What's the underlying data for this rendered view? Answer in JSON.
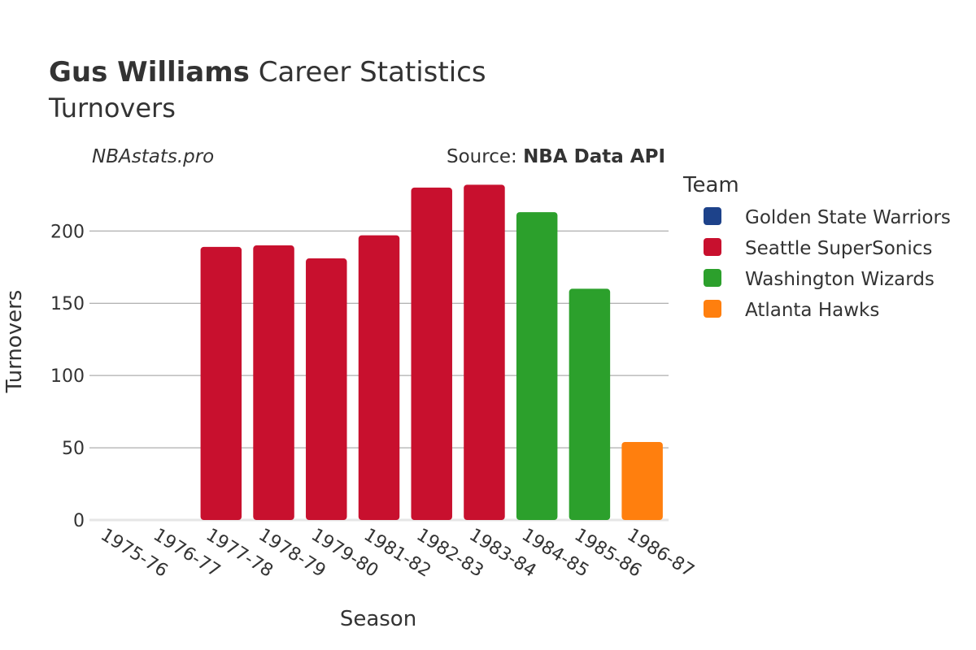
{
  "title": {
    "player": "Gus Williams",
    "rest": " Career Statistics",
    "subtitle": "Turnovers"
  },
  "watermark": "NBAstats.pro",
  "source": {
    "prefix": "Source: ",
    "name": "NBA Data API"
  },
  "legend": {
    "title": "Team",
    "items": [
      {
        "label": "Golden State Warriors",
        "color": "#1d428a"
      },
      {
        "label": "Seattle SuperSonics",
        "color": "#c8102e"
      },
      {
        "label": "Washington Wizards",
        "color": "#2ca02c"
      },
      {
        "label": "Atlanta Hawks",
        "color": "#ff7f0e"
      }
    ]
  },
  "chart_data": {
    "type": "bar",
    "title": "Gus Williams Career Statistics — Turnovers",
    "xlabel": "Season",
    "ylabel": "Turnovers",
    "ylim": [
      0,
      235
    ],
    "yticks": [
      0,
      50,
      100,
      150,
      200
    ],
    "grid": true,
    "legend_position": "right",
    "categories": [
      "1975-76",
      "1976-77",
      "1977-78",
      "1978-79",
      "1979-80",
      "1981-82",
      "1982-83",
      "1983-84",
      "1984-85",
      "1985-86",
      "1986-87"
    ],
    "values": [
      0,
      0,
      189,
      190,
      181,
      197,
      230,
      232,
      213,
      160,
      54
    ],
    "teams": [
      "Golden State Warriors",
      "Golden State Warriors",
      "Seattle SuperSonics",
      "Seattle SuperSonics",
      "Seattle SuperSonics",
      "Seattle SuperSonics",
      "Seattle SuperSonics",
      "Seattle SuperSonics",
      "Washington Wizards",
      "Washington Wizards",
      "Atlanta Hawks"
    ]
  }
}
